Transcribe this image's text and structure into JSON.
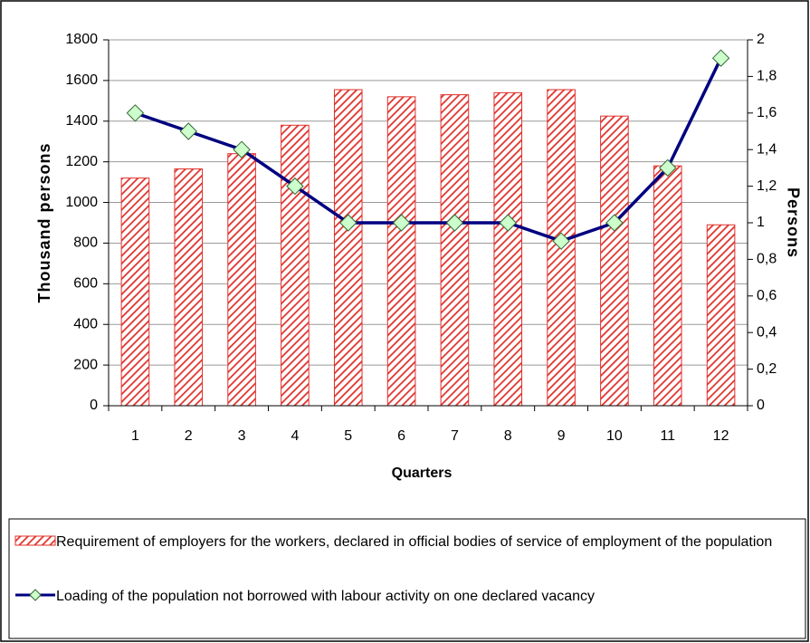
{
  "chart_data": {
    "type": "bar_line",
    "categories": [
      "1",
      "2",
      "3",
      "4",
      "5",
      "6",
      "7",
      "8",
      "9",
      "10",
      "11",
      "12"
    ],
    "series": [
      {
        "name": "Requirement of employers for the workers, declared in official bodies of service of employment of the population",
        "type": "bar",
        "color": "#e0302a",
        "values": [
          1120,
          1165,
          1240,
          1380,
          1555,
          1520,
          1530,
          1540,
          1555,
          1425,
          1180,
          890
        ]
      },
      {
        "name": "Loading of the population not borrowed with labour activity on one declared vacancy",
        "type": "line",
        "axis": "y2",
        "color": "#000080",
        "marker_color": "#ccffcc",
        "values": [
          1.6,
          1.5,
          1.4,
          1.2,
          1.0,
          1.0,
          1.0,
          1.0,
          0.9,
          1.0,
          1.3,
          1.9
        ]
      }
    ],
    "ylabel": "Thousand persons",
    "y2label": "Persons",
    "xlabel": "Quarters",
    "ylim": [
      0,
      1800
    ],
    "yticks": [
      0,
      200,
      400,
      600,
      800,
      1000,
      1200,
      1400,
      1600,
      1800
    ],
    "y2lim": [
      0,
      2
    ],
    "y2ticks": [
      0,
      {
        "value": 0.2,
        "label": "0,2"
      },
      {
        "value": 0.4,
        "label": "0,4"
      },
      {
        "value": 0.6,
        "label": "0,6"
      },
      {
        "value": 0.8,
        "label": "0,8"
      },
      1,
      {
        "value": 1.2,
        "label": "1,2"
      },
      {
        "value": 1.4,
        "label": "1,4"
      },
      {
        "value": 1.6,
        "label": "1,6"
      },
      {
        "value": 1.8,
        "label": "1,8"
      },
      2
    ],
    "grid": true
  }
}
